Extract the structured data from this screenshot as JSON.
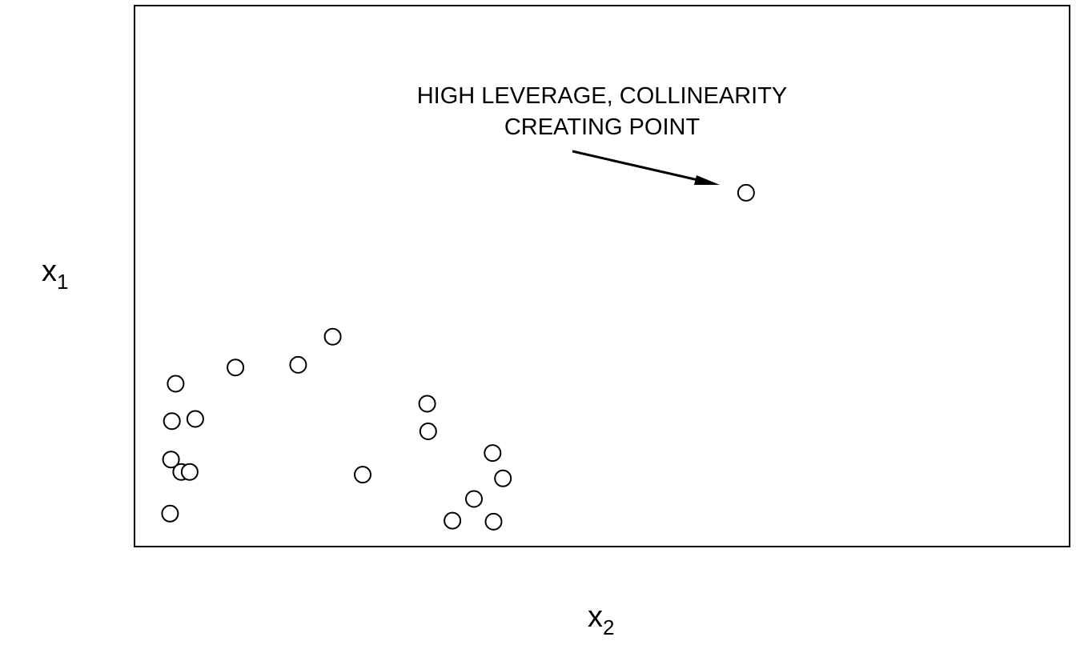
{
  "chart_data": {
    "type": "scatter",
    "title": "",
    "xlabel": "x",
    "xlabel_subscript": "2",
    "ylabel": "x",
    "ylabel_subscript": "1",
    "xlim": [
      0,
      100
    ],
    "ylim": [
      0,
      100
    ],
    "grid": false,
    "legend": "none",
    "series": [
      {
        "points": [
          {
            "x": 3.8,
            "y": 6.1
          },
          {
            "x": 3.9,
            "y": 16.1
          },
          {
            "x": 4.0,
            "y": 23.2
          },
          {
            "x": 4.4,
            "y": 30.1
          },
          {
            "x": 5.0,
            "y": 13.8
          },
          {
            "x": 5.9,
            "y": 13.8
          },
          {
            "x": 6.5,
            "y": 23.6
          },
          {
            "x": 10.8,
            "y": 33.1
          },
          {
            "x": 17.5,
            "y": 33.6
          },
          {
            "x": 21.2,
            "y": 38.8
          },
          {
            "x": 24.4,
            "y": 13.3
          },
          {
            "x": 31.3,
            "y": 26.4
          },
          {
            "x": 31.4,
            "y": 21.3
          },
          {
            "x": 34.0,
            "y": 4.8
          },
          {
            "x": 36.3,
            "y": 8.8
          },
          {
            "x": 38.3,
            "y": 17.3
          },
          {
            "x": 38.4,
            "y": 4.6
          },
          {
            "x": 39.4,
            "y": 12.6
          },
          {
            "x": 65.4,
            "y": 65.4
          }
        ]
      }
    ],
    "annotations": [
      {
        "text_lines": [
          "HIGH LEVERAGE, COLLINEARITY",
          "CREATING POINT"
        ],
        "target_point_index": 18
      }
    ]
  }
}
